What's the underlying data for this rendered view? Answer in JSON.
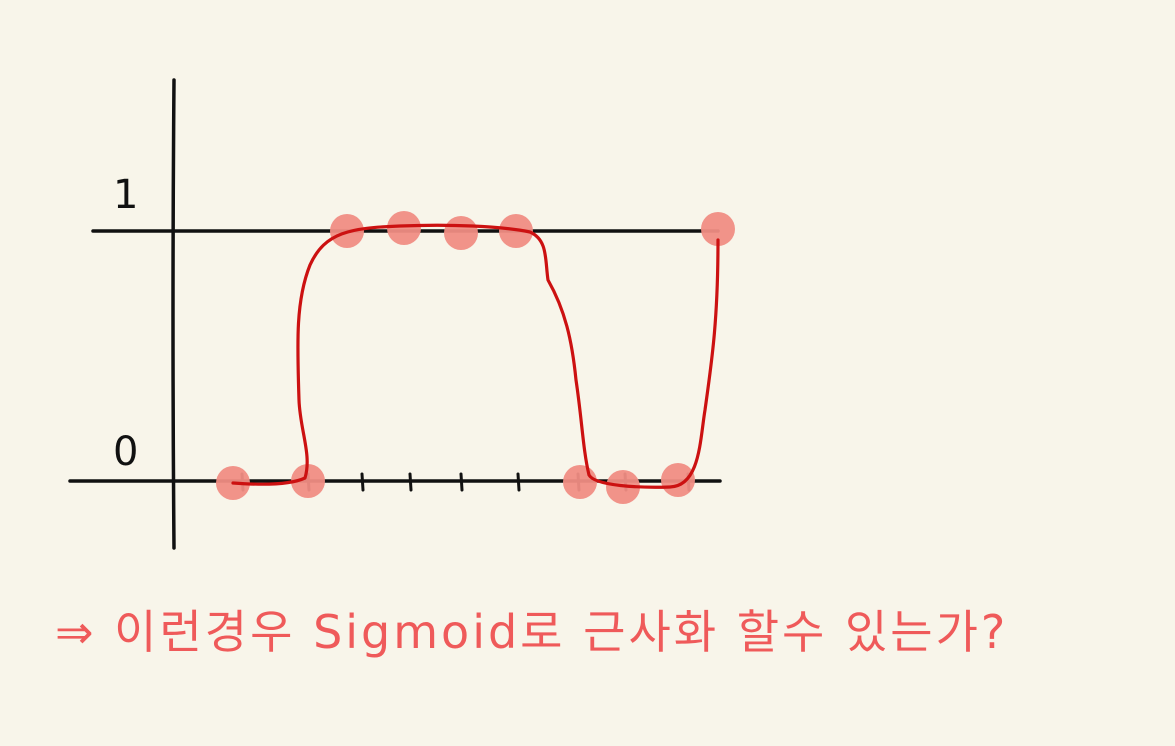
{
  "chart_data": {
    "type": "scatter",
    "y_tick_labels": [
      "0",
      "1"
    ],
    "ylim": [
      0,
      1
    ],
    "points": [
      {
        "x": 1,
        "y": 0
      },
      {
        "x": 2,
        "y": 0
      },
      {
        "x": 3,
        "y": 1
      },
      {
        "x": 4,
        "y": 1
      },
      {
        "x": 5,
        "y": 1
      },
      {
        "x": 6,
        "y": 1
      },
      {
        "x": 7,
        "y": 0
      },
      {
        "x": 8,
        "y": 0
      },
      {
        "x": 9,
        "y": 0
      },
      {
        "x": 10,
        "y": 1
      }
    ],
    "fitted_curve": "hand-drawn step-shaped curve rising after point 2, falling before point 7, rising again at point 10",
    "colors": {
      "points": "#f08d84",
      "curve": "#cc1111",
      "axes": "#111111",
      "note": "#ef5a5a"
    }
  },
  "note": {
    "text": "⇒ 이런경우  Sigmoid로 근사화 할수 있는가?"
  }
}
